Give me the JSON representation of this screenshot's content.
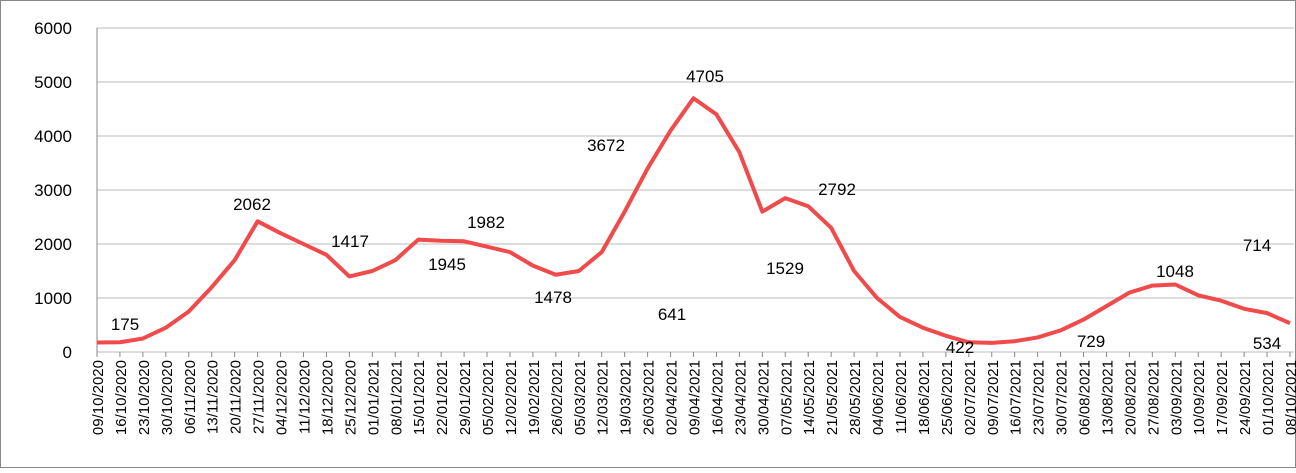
{
  "chart_data": {
    "type": "line",
    "categories": [
      "09/10/2020",
      "16/10/2020",
      "23/10/2020",
      "30/10/2020",
      "06/11/2020",
      "13/11/2020",
      "20/11/2020",
      "27/11/2020",
      "04/12/2020",
      "11/12/2020",
      "18/12/2020",
      "25/12/2020",
      "01/01/2021",
      "08/01/2021",
      "15/01/2021",
      "22/01/2021",
      "29/01/2021",
      "05/02/2021",
      "12/02/2021",
      "19/02/2021",
      "26/02/2021",
      "05/03/2021",
      "12/03/2021",
      "19/03/2021",
      "26/03/2021",
      "02/04/2021",
      "09/04/2021",
      "16/04/2021",
      "23/04/2021",
      "30/04/2021",
      "07/05/2021",
      "14/05/2021",
      "21/05/2021",
      "28/05/2021",
      "04/06/2021",
      "11/06/2021",
      "18/06/2021",
      "25/06/2021",
      "02/07/2021",
      "09/07/2021",
      "16/07/2021",
      "23/07/2021",
      "30/07/2021",
      "06/08/2021",
      "13/08/2021",
      "20/08/2021",
      "27/08/2021",
      "03/09/2021",
      "10/09/2021",
      "17/09/2021",
      "24/09/2021",
      "01/10/2021",
      "08/10/2021"
    ],
    "values": [
      175,
      180,
      250,
      450,
      750,
      1200,
      1700,
      2420,
      2200,
      2000,
      1800,
      1400,
      1500,
      1700,
      2080,
      2060,
      2050,
      1950,
      1850,
      1600,
      1430,
      1500,
      1850,
      2600,
      3400,
      4100,
      4700,
      4400,
      3700,
      2600,
      2850,
      2700,
      2300,
      1500,
      1000,
      650,
      450,
      300,
      180,
      170,
      200,
      270,
      400,
      600,
      850,
      1100,
      1230,
      1250,
      1050,
      950,
      800,
      720,
      534
    ],
    "color": "#f04a4a",
    "annotations": [
      "175",
      "2062",
      "1417",
      "1945",
      "1982",
      "1478",
      "3672",
      "4705",
      "2792",
      "1529",
      "641",
      "422",
      "729",
      "1048",
      "714",
      "534"
    ],
    "ylim": [
      0,
      6000
    ],
    "yticks": [
      0,
      1000,
      2000,
      3000,
      4000,
      5000,
      6000
    ],
    "grid": true
  }
}
